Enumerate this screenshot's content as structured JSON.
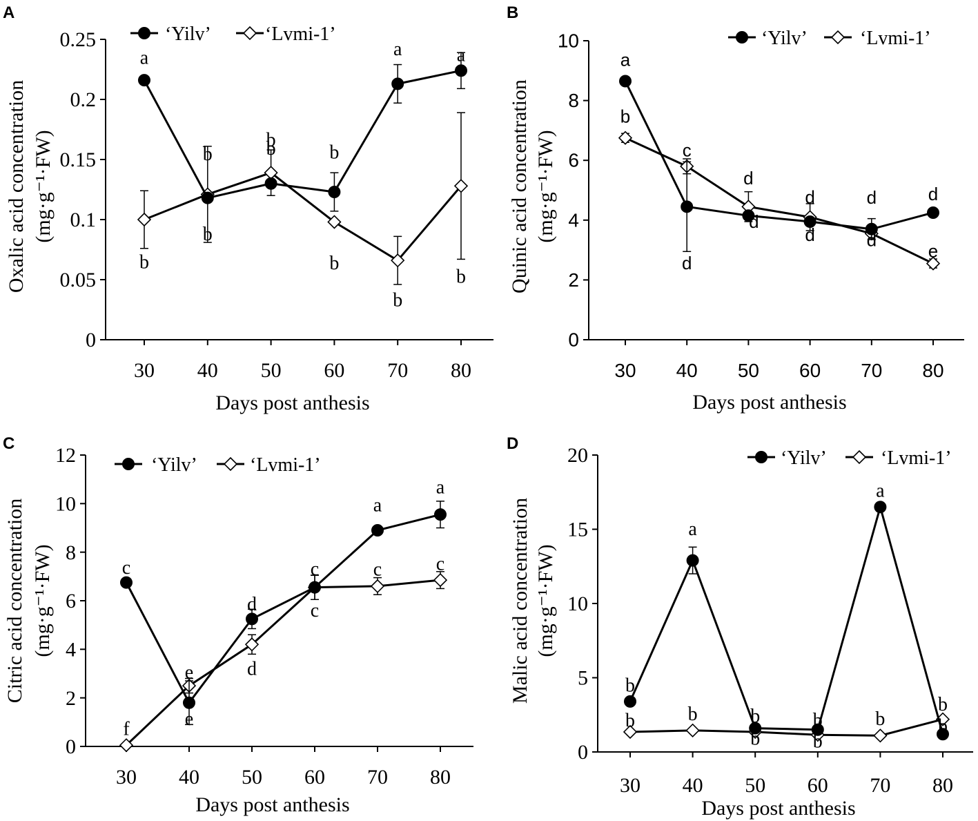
{
  "figure": {
    "panels": [
      "A",
      "B",
      "C",
      "D"
    ]
  },
  "colors": {
    "line": "#000000",
    "yilv_fill": "#000000",
    "lvmi_fill": "#ffffff"
  },
  "chart_data": [
    {
      "panel": "A",
      "type": "line",
      "ylabel": "Oxalic acid concentration",
      "yunit": "(mg·g⁻¹·FW)",
      "xlabel": "Days post anthesis",
      "x": [
        30,
        40,
        50,
        60,
        70,
        80
      ],
      "ylim": [
        0,
        0.25
      ],
      "yticks": [
        0,
        0.05,
        0.1,
        0.15,
        0.2,
        0.25
      ],
      "ytick_labels": [
        "0",
        "0.05",
        "0.1",
        "0.15",
        "0.2",
        "0.25"
      ],
      "legend": [
        "‘Yilv’",
        "‘Lvmi-1’"
      ],
      "series": [
        {
          "name": "‘Yilv’",
          "marker": "circle",
          "values": [
            0.216,
            0.118,
            0.13,
            0.123,
            0.213,
            0.224
          ],
          "errors": [
            0,
            0,
            0,
            0.016,
            0.016,
            0.015
          ],
          "letters": [
            "a",
            "b",
            "b",
            "b",
            "a",
            "a"
          ]
        },
        {
          "name": "‘Lvmi-1’",
          "marker": "diamond",
          "values": [
            0.1,
            0.121,
            0.139,
            0.098,
            0.066,
            0.128
          ],
          "errors": [
            0.024,
            0.04,
            0.019,
            0,
            0.02,
            0.061
          ],
          "letters": [
            "b",
            "b",
            "b",
            "b",
            "b",
            "b"
          ]
        }
      ]
    },
    {
      "panel": "B",
      "type": "line",
      "ylabel": "Quinic acid concentration",
      "yunit": "(mg·g⁻¹·FW)",
      "xlabel": "Days post anthesis",
      "x": [
        30,
        40,
        50,
        60,
        70,
        80
      ],
      "ylim": [
        0,
        10
      ],
      "yticks": [
        0,
        2,
        4,
        6,
        8,
        10
      ],
      "ytick_labels": [
        "0",
        "2",
        "4",
        "6",
        "8",
        "10"
      ],
      "legend": [
        "‘Yilv’",
        "‘Lvmi-1’"
      ],
      "series": [
        {
          "name": "‘Yilv’",
          "marker": "circle",
          "values": [
            8.65,
            4.45,
            4.15,
            3.95,
            3.7,
            4.25
          ],
          "errors": [
            0,
            1.5,
            0,
            0,
            0.35,
            0
          ],
          "letters": [
            "a",
            "d",
            "d",
            "d",
            "d",
            "d"
          ]
        },
        {
          "name": "‘Lvmi-1’",
          "marker": "diamond",
          "values": [
            6.75,
            5.8,
            4.45,
            4.1,
            3.55,
            2.55
          ],
          "errors": [
            0.15,
            0.25,
            0.5,
            0.45,
            0,
            0.15
          ],
          "letters": [
            "b",
            "c",
            "d",
            "d",
            "d",
            "e"
          ]
        }
      ]
    },
    {
      "panel": "C",
      "type": "line",
      "ylabel": "Citric acid concentration",
      "yunit": "(mg·g⁻¹·FW)",
      "xlabel": "Days post anthesis",
      "x": [
        30,
        40,
        50,
        60,
        70,
        80
      ],
      "ylim": [
        0,
        12
      ],
      "yticks": [
        0,
        2,
        4,
        6,
        8,
        10,
        12
      ],
      "ytick_labels": [
        "0",
        "2",
        "4",
        "6",
        "8",
        "10",
        "12"
      ],
      "legend": [
        "‘Yilv’",
        "‘Lvmi-1’"
      ],
      "series": [
        {
          "name": "‘Yilv’",
          "marker": "circle",
          "values": [
            6.75,
            1.8,
            5.25,
            6.55,
            8.9,
            9.55
          ],
          "errors": [
            0,
            0.9,
            0.4,
            0.5,
            0,
            0.55
          ],
          "letters": [
            "c",
            "e",
            "d",
            "c",
            "a",
            "a"
          ]
        },
        {
          "name": "‘Lvmi-1’",
          "marker": "diamond",
          "values": [
            0.05,
            2.5,
            4.2,
            6.55,
            6.6,
            6.85
          ],
          "errors": [
            0,
            0.3,
            0.4,
            0.5,
            0.35,
            0.35
          ],
          "letters": [
            "f",
            "e",
            "d",
            "c",
            "c",
            "c"
          ]
        }
      ]
    },
    {
      "panel": "D",
      "type": "line",
      "ylabel": "Malic acid concentration",
      "yunit": "(mg·g⁻¹·FW)",
      "xlabel": "Days post anthesis",
      "x": [
        30,
        40,
        50,
        60,
        70,
        80
      ],
      "ylim": [
        0,
        20
      ],
      "yticks": [
        0,
        5,
        10,
        15,
        20
      ],
      "ytick_labels": [
        "0",
        "5",
        "10",
        "15",
        "20"
      ],
      "legend": [
        "‘Yilv’",
        "‘Lvmi-1’"
      ],
      "series": [
        {
          "name": "‘Yilv’",
          "marker": "circle",
          "values": [
            3.4,
            12.9,
            1.6,
            1.5,
            16.5,
            1.2
          ],
          "errors": [
            0,
            0.9,
            0,
            0,
            0,
            0
          ],
          "letters": [
            "b",
            "a",
            "b",
            "b",
            "a",
            "b"
          ]
        },
        {
          "name": "‘Lvmi-1’",
          "marker": "diamond",
          "values": [
            1.35,
            1.45,
            1.35,
            1.15,
            1.1,
            2.2
          ],
          "errors": [
            0,
            0,
            0,
            0,
            0,
            0
          ],
          "letters": [
            "b",
            "b",
            "b",
            "b",
            "b",
            "b"
          ]
        }
      ]
    }
  ]
}
